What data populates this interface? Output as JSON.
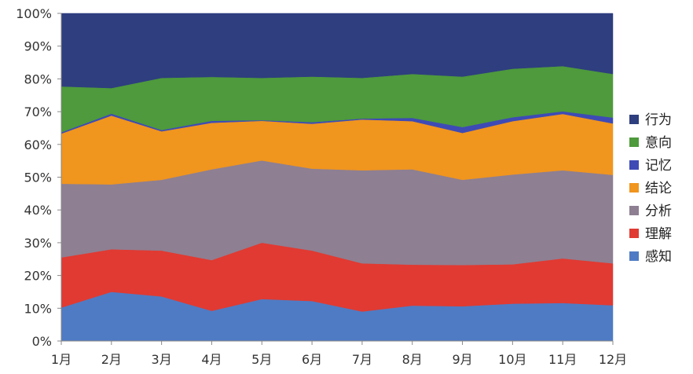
{
  "chart_data": {
    "type": "area",
    "stacked": true,
    "normalized_percent": true,
    "title": "",
    "xlabel": "",
    "ylabel": "",
    "categories": [
      "1月",
      "2月",
      "3月",
      "4月",
      "5月",
      "6月",
      "7月",
      "8月",
      "9月",
      "10月",
      "11月",
      "12月"
    ],
    "ylim": [
      0,
      100
    ],
    "yticks": [
      "0%",
      "10%",
      "20%",
      "30%",
      "40%",
      "50%",
      "60%",
      "70%",
      "80%",
      "90%",
      "100%"
    ],
    "ytick_values": [
      0,
      10,
      20,
      30,
      40,
      50,
      60,
      70,
      80,
      90,
      100
    ],
    "grid": false,
    "legend_position": "right",
    "series": [
      {
        "name": "感知",
        "color": "#4F7BC4",
        "values": [
          10.2,
          15.0,
          13.6,
          9.2,
          12.8,
          12.2,
          9.0,
          10.8,
          10.6,
          11.4,
          11.6,
          10.9
        ]
      },
      {
        "name": "理解",
        "color": "#E03A32",
        "values": [
          15.3,
          13.0,
          14.0,
          15.5,
          17.2,
          15.4,
          14.7,
          12.5,
          12.6,
          12.0,
          13.6,
          12.8
        ]
      },
      {
        "name": "分析",
        "color": "#8E7F92",
        "values": [
          22.5,
          19.8,
          21.6,
          27.7,
          25.1,
          25.0,
          28.4,
          29.1,
          26.0,
          27.4,
          26.9,
          27.0
        ]
      },
      {
        "name": "结论",
        "color": "#F0951E",
        "values": [
          15.3,
          21.0,
          14.8,
          14.2,
          12.1,
          13.7,
          15.5,
          14.7,
          14.3,
          16.3,
          17.2,
          15.7
        ]
      },
      {
        "name": "记忆",
        "color": "#3E4BB5",
        "values": [
          0.4,
          0.6,
          0.4,
          0.6,
          0.2,
          0.5,
          0.3,
          1.0,
          1.8,
          1.2,
          0.8,
          1.8
        ]
      },
      {
        "name": "意向",
        "color": "#4E9A3C",
        "values": [
          14.0,
          7.8,
          15.9,
          13.4,
          12.9,
          13.9,
          12.4,
          13.4,
          15.4,
          14.8,
          13.8,
          13.3
        ]
      },
      {
        "name": "行为",
        "color": "#2E3E7E",
        "values": [
          22.3,
          22.8,
          19.7,
          19.4,
          19.7,
          19.3,
          19.7,
          18.5,
          19.3,
          16.9,
          16.1,
          18.5
        ]
      }
    ]
  }
}
